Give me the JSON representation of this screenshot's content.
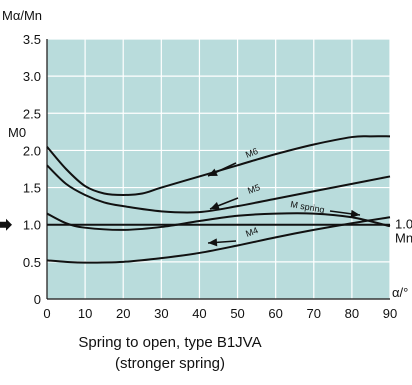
{
  "chart_data": {
    "type": "line",
    "title": "",
    "ylabel": "Mα/Mn",
    "xlabel": "α/°",
    "xlim": [
      0,
      90
    ],
    "ylim": [
      0,
      3.5
    ],
    "xticks": [
      "0",
      "10",
      "20",
      "30",
      "40",
      "50",
      "60",
      "70",
      "80",
      "90"
    ],
    "yticks": [
      "0",
      "0.5",
      "1.0",
      "1.5",
      "2.0",
      "2.5",
      "3.0",
      "3.5"
    ],
    "m0_label": "M0",
    "mn_label": "Mn",
    "mn_value_label": "1.0",
    "reference_value": 1.0,
    "grid": true,
    "colors": {
      "plot_bg": "#b9dcdc",
      "grid": "#ffffff",
      "line": "#111111",
      "axis": "#111111"
    },
    "series": [
      {
        "name": "M6",
        "x": [
          0,
          5,
          10,
          15,
          20,
          25,
          30,
          40,
          50,
          60,
          70,
          80,
          85,
          90
        ],
        "y": [
          2.05,
          1.75,
          1.52,
          1.42,
          1.4,
          1.42,
          1.5,
          1.65,
          1.8,
          1.95,
          2.08,
          2.18,
          2.19,
          2.19
        ]
      },
      {
        "name": "M5",
        "x": [
          0,
          5,
          10,
          15,
          20,
          30,
          40,
          50,
          60,
          70,
          80,
          90
        ],
        "y": [
          1.8,
          1.55,
          1.4,
          1.3,
          1.25,
          1.18,
          1.17,
          1.25,
          1.35,
          1.45,
          1.55,
          1.65
        ]
      },
      {
        "name": "M spring",
        "x": [
          0,
          5,
          10,
          20,
          30,
          40,
          50,
          60,
          70,
          80,
          90
        ],
        "y": [
          1.15,
          1.02,
          0.96,
          0.93,
          0.97,
          1.05,
          1.12,
          1.15,
          1.15,
          1.1,
          0.98
        ]
      },
      {
        "name": "M4",
        "x": [
          0,
          5,
          10,
          20,
          30,
          40,
          50,
          60,
          70,
          80,
          90
        ],
        "y": [
          0.52,
          0.5,
          0.49,
          0.5,
          0.55,
          0.62,
          0.72,
          0.83,
          0.93,
          1.02,
          1.1
        ]
      }
    ]
  },
  "caption": {
    "line1": "Spring to open, type B1JVA",
    "line2": "(stronger spring)"
  }
}
